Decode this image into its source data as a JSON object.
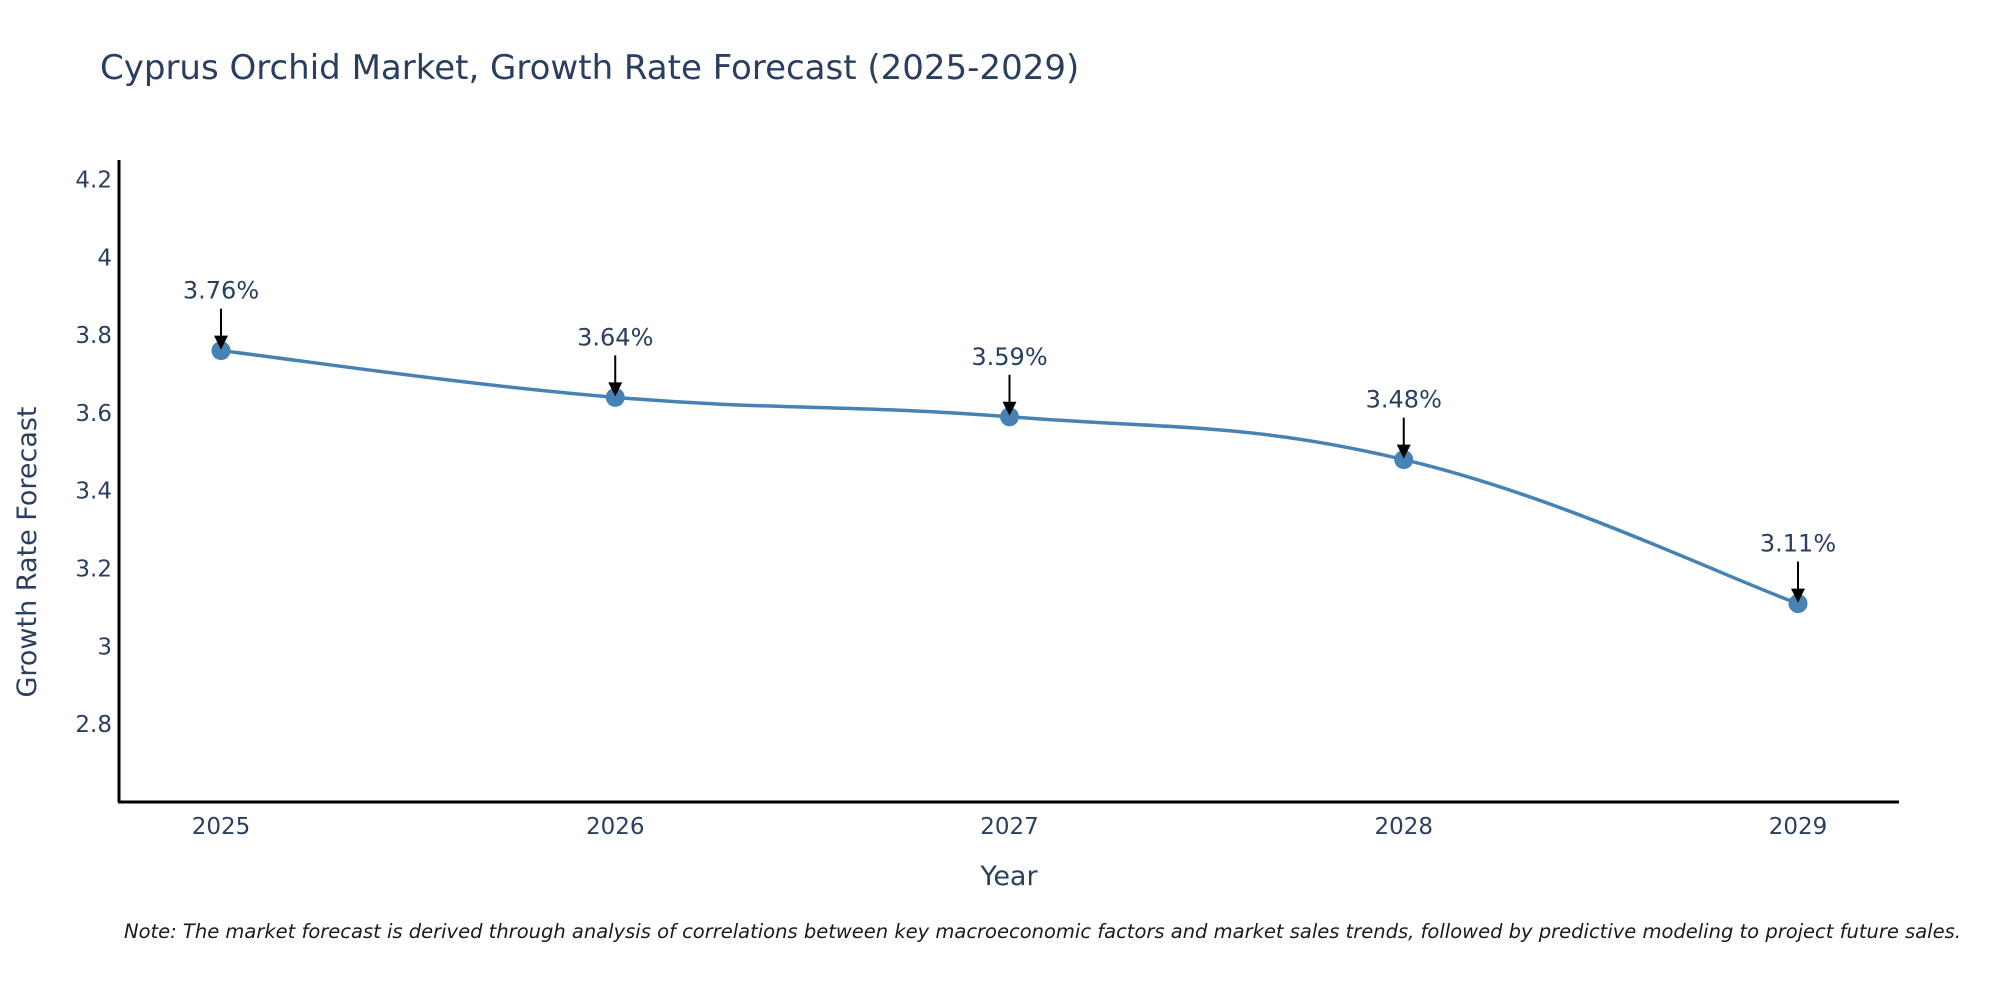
{
  "chart_data": {
    "type": "line",
    "title": "Cyprus Orchid Market, Growth Rate Forecast (2025-2029)",
    "xlabel": "Year",
    "ylabel": "Growth Rate Forecast",
    "categories": [
      "2025",
      "2026",
      "2027",
      "2028",
      "2029"
    ],
    "values": [
      3.76,
      3.64,
      3.59,
      3.48,
      3.11
    ],
    "data_labels": [
      "3.76%",
      "3.64%",
      "3.59%",
      "3.48%",
      "3.11%"
    ],
    "ylim": [
      2.6,
      4.25
    ],
    "yticks": [
      2.8,
      3,
      3.2,
      3.4,
      3.6,
      3.8,
      4,
      4.2
    ],
    "ytick_labels": [
      "2.8",
      "3",
      "3.2",
      "3.4",
      "3.6",
      "3.8",
      "4",
      "4.2"
    ],
    "line_shape": "spline",
    "grid": false,
    "series_color": "#4682b4",
    "note": "Note: The market forecast is derived through analysis of correlations between key macroeconomic factors and market sales trends, followed by predictive modeling to project future sales."
  }
}
